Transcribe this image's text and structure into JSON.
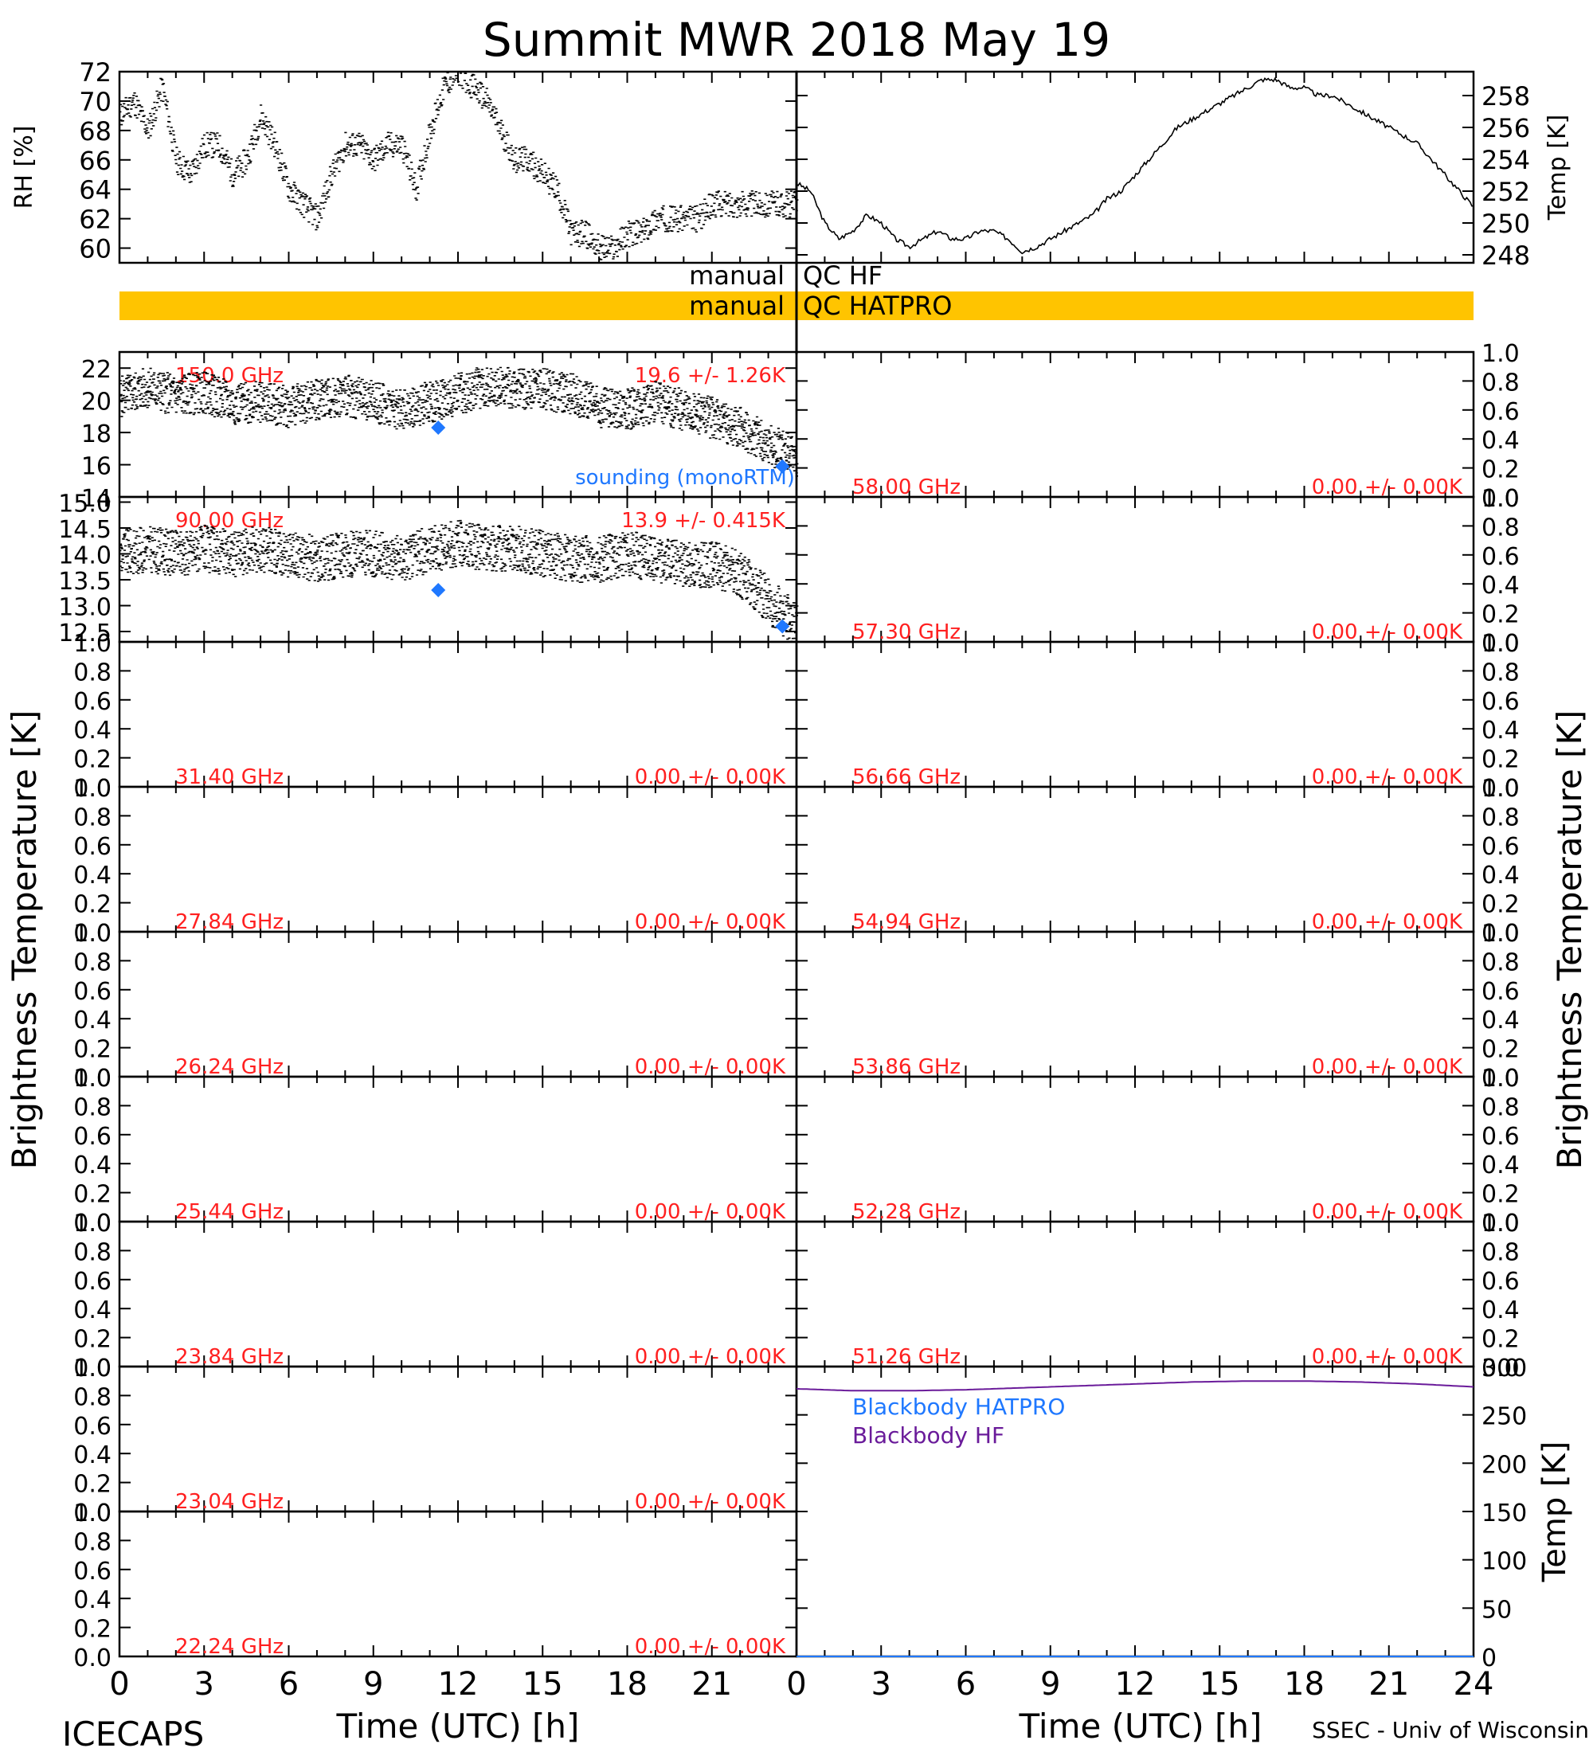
{
  "title": "Summit MWR 2018 May 19",
  "footer": {
    "left": "ICECAPS",
    "right": "SSEC - Univ of Wisconsin",
    "xlabel_left": "Time (UTC) [h]",
    "xlabel_right": "Time (UTC) [h]"
  },
  "side_labels": {
    "left": "Brightness Temperature [K]",
    "right": "Brightness Temperature [K]"
  },
  "qc": {
    "hf_label_left": "manual",
    "hf_label_right": "QC HF",
    "hatpro_label_left": "manual",
    "hatpro_label_right": "QC HATPRO",
    "hatpro_bar_color": "#ffc400"
  },
  "colors": {
    "stats_text": "#ff2020",
    "sounding": "#1f78ff",
    "bb_hatpro": "#1f78ff",
    "bb_hf": "#6a1b9a",
    "trace": "#000000"
  },
  "chart_data": [
    {
      "id": "rh",
      "type": "scatter",
      "ylabel": "RH [%]",
      "xlim": [
        0,
        24
      ],
      "ylim": [
        59,
        72
      ],
      "yticks": [
        60,
        62,
        64,
        66,
        68,
        70,
        72
      ],
      "x": [
        0,
        0.5,
        1,
        1.5,
        2,
        2.5,
        3,
        3.5,
        4,
        4.5,
        5,
        5.5,
        6,
        6.5,
        7,
        7.5,
        8,
        8.5,
        9,
        9.5,
        10,
        10.5,
        11,
        11.5,
        12,
        12.5,
        13,
        13.5,
        14,
        14.5,
        15,
        15.5,
        16,
        16.5,
        17,
        17.5,
        18,
        18.5,
        19,
        19.5,
        20,
        20.5,
        21,
        21.5,
        22,
        22.5,
        23,
        23.5,
        24
      ],
      "y": [
        69,
        70,
        68,
        71,
        66,
        65,
        67,
        67,
        65,
        66,
        69,
        67,
        64,
        63,
        62,
        65,
        67,
        67,
        66,
        67,
        67,
        64,
        68,
        71,
        72,
        71,
        70,
        68,
        66,
        66,
        65,
        64,
        61,
        61,
        60,
        60,
        61,
        61,
        62,
        62,
        62,
        62,
        63,
        63,
        63,
        63,
        63,
        63,
        63
      ]
    },
    {
      "id": "temp",
      "type": "line",
      "ylabel": "Temp [K]",
      "xlim": [
        0,
        24
      ],
      "ylim": [
        247.5,
        259.5
      ],
      "yticks": [
        248,
        250,
        252,
        254,
        256,
        258
      ],
      "x": [
        0,
        0.5,
        1,
        1.5,
        2,
        2.5,
        3,
        3.5,
        4,
        4.5,
        5,
        5.5,
        6,
        6.5,
        7,
        7.5,
        8,
        8.5,
        9,
        9.5,
        10,
        10.5,
        11,
        11.5,
        12,
        12.5,
        13,
        13.5,
        14,
        14.5,
        15,
        15.5,
        16,
        16.5,
        17,
        17.5,
        18,
        18.5,
        19,
        19.5,
        20,
        20.5,
        21,
        21.5,
        22,
        22.5,
        23,
        23.5,
        24
      ],
      "y": [
        252.5,
        252,
        250,
        249,
        249.5,
        250.5,
        250,
        249,
        248.5,
        249,
        249.5,
        249,
        249,
        249.5,
        249.5,
        249,
        248.2,
        248.5,
        249,
        249.5,
        250,
        250.5,
        251.5,
        252,
        253,
        254,
        255,
        256,
        256.5,
        257,
        257.5,
        258,
        258.5,
        259,
        259,
        258.5,
        258.5,
        258,
        258,
        257.5,
        257,
        256.5,
        256,
        255.5,
        255,
        254,
        253,
        252,
        251
      ]
    },
    {
      "id": "ch-150",
      "type": "scatter",
      "side": "left",
      "freq_label": "150.0 GHz",
      "stats_label": "19.6 +/- 1.26K",
      "xlim": [
        0,
        24
      ],
      "ylim": [
        14,
        23
      ],
      "yticks": [
        14,
        16,
        18,
        20,
        22
      ],
      "x": [
        0,
        1,
        2,
        3,
        4,
        5,
        6,
        7,
        8,
        9,
        10,
        11,
        12,
        13,
        14,
        15,
        16,
        17,
        18,
        19,
        20,
        21,
        22,
        23,
        24
      ],
      "y": [
        20.2,
        20.8,
        20.3,
        20.5,
        19.8,
        19.9,
        19.6,
        20.1,
        20.3,
        19.9,
        19.4,
        19.9,
        20.4,
        20.9,
        20.7,
        20.7,
        20.4,
        19.6,
        19.4,
        19.9,
        19.4,
        18.9,
        18.3,
        17.3,
        16.4
      ],
      "sounding_x": [
        11.3,
        23.5
      ],
      "sounding_y": [
        18.3,
        15.9
      ],
      "sounding_label": "sounding (monoRTM)"
    },
    {
      "id": "ch-90",
      "type": "scatter",
      "side": "left",
      "freq_label": "90.00 GHz",
      "stats_label": "13.9 +/- 0.415K",
      "xlim": [
        0,
        24
      ],
      "ylim": [
        12.3,
        15.1
      ],
      "yticks": [
        12.5,
        13.0,
        13.5,
        14.0,
        14.5,
        15.0
      ],
      "x": [
        0,
        1,
        2,
        3,
        4,
        5,
        6,
        7,
        8,
        9,
        10,
        11,
        12,
        13,
        14,
        15,
        16,
        17,
        18,
        19,
        20,
        21,
        22,
        23,
        24
      ],
      "y": [
        14.0,
        14.1,
        14.0,
        14.1,
        14.0,
        14.1,
        14.0,
        13.9,
        14.0,
        14.0,
        13.9,
        14.1,
        14.2,
        14.1,
        14.1,
        14.0,
        13.9,
        13.9,
        14.0,
        13.9,
        13.8,
        13.8,
        13.6,
        13.1,
        12.6
      ],
      "sounding_x": [
        11.3,
        23.5
      ],
      "sounding_y": [
        13.3,
        12.6
      ]
    },
    {
      "id": "ch-31",
      "side": "left",
      "freq_label": "31.40 GHz",
      "stats_label": "0.00 +/- 0.00K",
      "type": "line",
      "ylim": [
        0,
        1
      ],
      "yticks": [
        0.0,
        0.2,
        0.4,
        0.6,
        0.8,
        1.0
      ]
    },
    {
      "id": "ch-27",
      "side": "left",
      "freq_label": "27.84 GHz",
      "stats_label": "0.00 +/- 0.00K",
      "type": "line",
      "ylim": [
        0,
        1
      ],
      "yticks": [
        0.0,
        0.2,
        0.4,
        0.6,
        0.8,
        1.0
      ]
    },
    {
      "id": "ch-26",
      "side": "left",
      "freq_label": "26.24 GHz",
      "stats_label": "0.00 +/- 0.00K",
      "type": "line",
      "ylim": [
        0,
        1
      ],
      "yticks": [
        0.0,
        0.2,
        0.4,
        0.6,
        0.8,
        1.0
      ]
    },
    {
      "id": "ch-25",
      "side": "left",
      "freq_label": "25.44 GHz",
      "stats_label": "0.00 +/- 0.00K",
      "type": "line",
      "ylim": [
        0,
        1
      ],
      "yticks": [
        0.0,
        0.2,
        0.4,
        0.6,
        0.8,
        1.0
      ]
    },
    {
      "id": "ch-23.84",
      "side": "left",
      "freq_label": "23.84 GHz",
      "stats_label": "0.00 +/- 0.00K",
      "type": "line",
      "ylim": [
        0,
        1
      ],
      "yticks": [
        0.0,
        0.2,
        0.4,
        0.6,
        0.8,
        1.0
      ]
    },
    {
      "id": "ch-23.04",
      "side": "left",
      "freq_label": "23.04 GHz",
      "stats_label": "0.00 +/- 0.00K",
      "type": "line",
      "ylim": [
        0,
        1
      ],
      "yticks": [
        0.0,
        0.2,
        0.4,
        0.6,
        0.8,
        1.0
      ]
    },
    {
      "id": "ch-22.24",
      "side": "left",
      "freq_label": "22.24 GHz",
      "stats_label": "0.00 +/- 0.00K",
      "type": "line",
      "ylim": [
        0,
        1
      ],
      "yticks": [
        0.0,
        0.2,
        0.4,
        0.6,
        0.8,
        1.0
      ]
    },
    {
      "id": "ch-58",
      "side": "right",
      "freq_label": "58.00 GHz",
      "stats_label": "0.00 +/- 0.00K",
      "type": "line",
      "ylim": [
        0,
        1
      ],
      "yticks": [
        0.0,
        0.2,
        0.4,
        0.6,
        0.8,
        1.0
      ]
    },
    {
      "id": "ch-57",
      "side": "right",
      "freq_label": "57.30 GHz",
      "stats_label": "0.00 +/- 0.00K",
      "type": "line",
      "ylim": [
        0,
        1
      ],
      "yticks": [
        0.0,
        0.2,
        0.4,
        0.6,
        0.8,
        1.0
      ]
    },
    {
      "id": "ch-56",
      "side": "right",
      "freq_label": "56.66 GHz",
      "stats_label": "0.00 +/- 0.00K",
      "type": "line",
      "ylim": [
        0,
        1
      ],
      "yticks": [
        0.0,
        0.2,
        0.4,
        0.6,
        0.8,
        1.0
      ]
    },
    {
      "id": "ch-54",
      "side": "right",
      "freq_label": "54.94 GHz",
      "stats_label": "0.00 +/- 0.00K",
      "type": "line",
      "ylim": [
        0,
        1
      ],
      "yticks": [
        0.0,
        0.2,
        0.4,
        0.6,
        0.8,
        1.0
      ]
    },
    {
      "id": "ch-53",
      "side": "right",
      "freq_label": "53.86 GHz",
      "stats_label": "0.00 +/- 0.00K",
      "type": "line",
      "ylim": [
        0,
        1
      ],
      "yticks": [
        0.0,
        0.2,
        0.4,
        0.6,
        0.8,
        1.0
      ]
    },
    {
      "id": "ch-52",
      "side": "right",
      "freq_label": "52.28 GHz",
      "stats_label": "0.00 +/- 0.00K",
      "type": "line",
      "ylim": [
        0,
        1
      ],
      "yticks": [
        0.0,
        0.2,
        0.4,
        0.6,
        0.8,
        1.0
      ]
    },
    {
      "id": "ch-51",
      "side": "right",
      "freq_label": "51.26 GHz",
      "stats_label": "0.00 +/- 0.00K",
      "type": "line",
      "ylim": [
        0,
        1
      ],
      "yticks": [
        0.0,
        0.2,
        0.4,
        0.6,
        0.8,
        1.0
      ]
    },
    {
      "id": "blackbody",
      "type": "line",
      "side": "right",
      "ylabel": "Temp [K]",
      "xlim": [
        0,
        24
      ],
      "ylim": [
        0,
        300
      ],
      "yticks": [
        0,
        50,
        100,
        150,
        200,
        250,
        300
      ],
      "series": [
        {
          "name": "Blackbody HATPRO",
          "x": [
            0,
            24
          ],
          "y": [
            0,
            0
          ]
        },
        {
          "name": "Blackbody HF",
          "x": [
            0,
            2,
            4,
            6,
            8,
            10,
            12,
            14,
            16,
            18,
            20,
            22,
            24
          ],
          "y": [
            277,
            275,
            275,
            276,
            278,
            280,
            282,
            284,
            285,
            285,
            284,
            282,
            279
          ]
        }
      ]
    }
  ],
  "x_axis": {
    "xlim": [
      0,
      24
    ],
    "xticks": [
      0,
      3,
      6,
      9,
      12,
      15,
      18,
      21,
      24
    ],
    "left_tick_labels": [
      "0",
      "3",
      "6",
      "9",
      "12",
      "15",
      "18",
      "21"
    ],
    "right_tick_labels": [
      "0",
      "3",
      "6",
      "9",
      "12",
      "15",
      "18",
      "21",
      "24"
    ]
  }
}
